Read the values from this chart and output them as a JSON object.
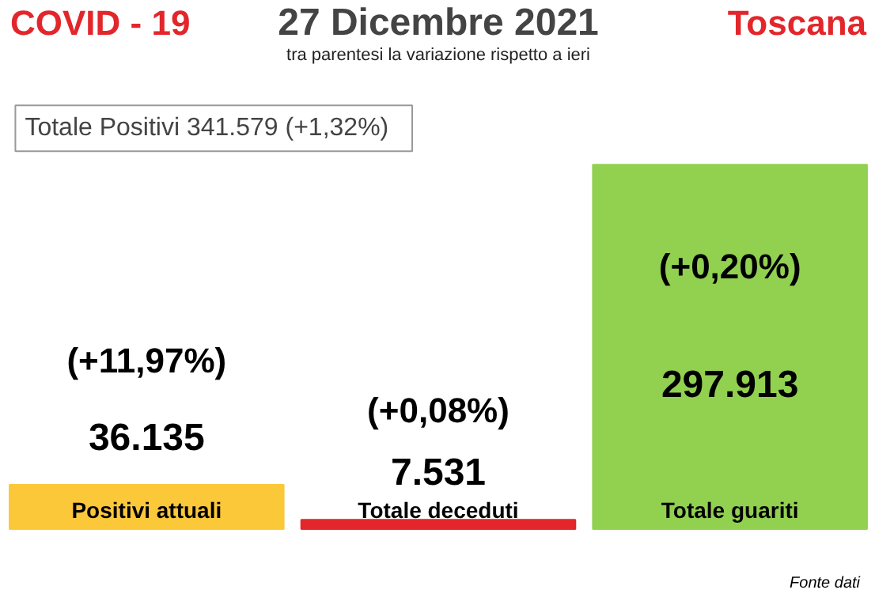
{
  "chart_data": {
    "type": "bar",
    "title": "27 Dicembre 2021",
    "subtitle": "tra parentesi la variazione rispetto a ieri",
    "categories": [
      "Positivi attuali",
      "Totale deceduti",
      "Totale guariti"
    ],
    "values": [
      36135,
      7531,
      297913
    ],
    "colors": [
      "#fbc83a",
      "#e3262b",
      "#92d050"
    ],
    "value_labels": [
      "36.135",
      "7.531",
      "297.913"
    ],
    "annotations": [
      "COVID - 19",
      "Toscana",
      "Totale Positivi   341.579 (+1,32%)",
      "(+11,97%)",
      "(+0,08%)",
      "(+0,20%)",
      "Fonte dati"
    ],
    "grid": false
  }
}
